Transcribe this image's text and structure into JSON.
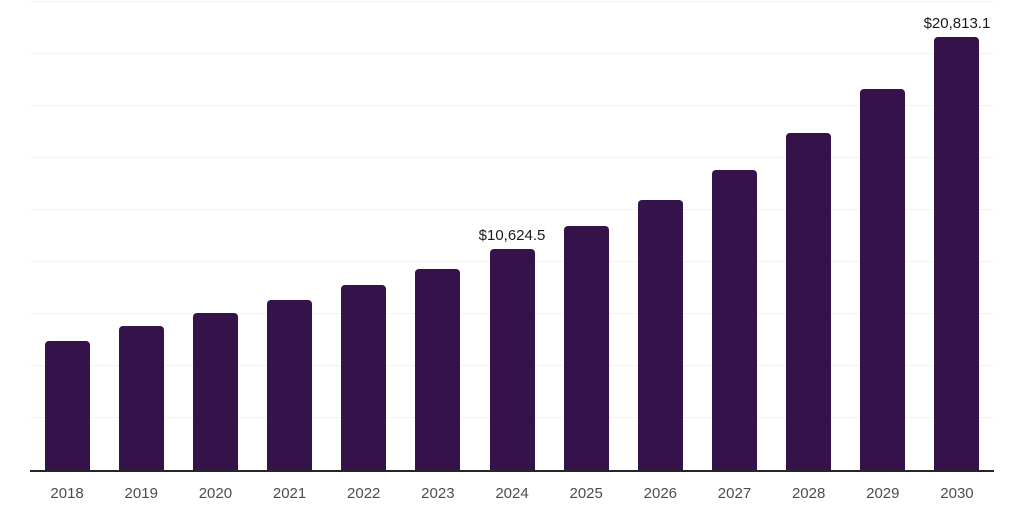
{
  "chart_data": {
    "type": "bar",
    "title": "",
    "xlabel": "",
    "ylabel": "",
    "categories": [
      "2018",
      "2019",
      "2020",
      "2021",
      "2022",
      "2023",
      "2024",
      "2025",
      "2026",
      "2027",
      "2028",
      "2029",
      "2030"
    ],
    "values": [
      6200,
      6925,
      7550,
      8175,
      8900,
      9675,
      10624.5,
      11750,
      13000,
      14425,
      16200,
      18325,
      20813.1
    ],
    "data_labels": [
      null,
      null,
      null,
      null,
      null,
      null,
      "$10,624.5",
      null,
      null,
      null,
      null,
      null,
      "$20,813.1"
    ],
    "ylim": [
      0,
      22500
    ],
    "grid_step": 2500,
    "grid": true,
    "legend": false,
    "colors": {
      "bar": "#36124a",
      "axis_line": "#262626",
      "gridline": "#f2f2f2",
      "data_label_text": "#1a1a1a",
      "tick_label_text": "#4d4d4d",
      "background": "#ffffff"
    }
  }
}
